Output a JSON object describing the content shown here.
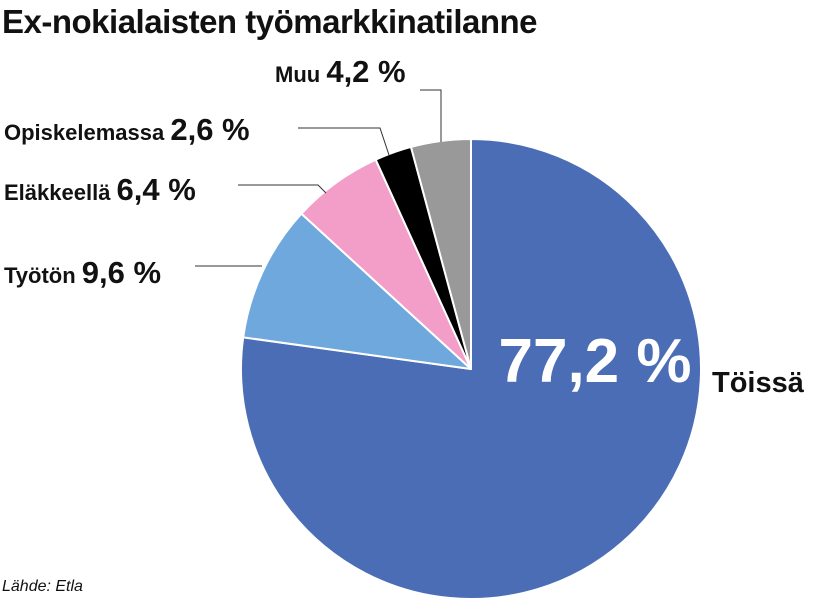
{
  "chart_data": {
    "type": "pie",
    "title": "Ex-nokialaisten työmarkkinatilanne",
    "source": "Lähde: Etla",
    "start_angle_deg": 0,
    "direction": "clockwise",
    "slices": [
      {
        "label": "Töissä",
        "value": 77.2,
        "value_label": "77,2 %",
        "color": "#4a6db5"
      },
      {
        "label": "Työtön",
        "value": 9.6,
        "value_label": "9,6 %",
        "color": "#6fa8dc"
      },
      {
        "label": "Eläkkeellä",
        "value": 6.4,
        "value_label": "6,4 %",
        "color": "#f29ec8"
      },
      {
        "label": "Opiskelemassa",
        "value": 2.6,
        "value_label": "2,6 %",
        "color": "#000000"
      },
      {
        "label": "Muu",
        "value": 4.2,
        "value_label": "4,2 %",
        "color": "#999999"
      }
    ]
  }
}
